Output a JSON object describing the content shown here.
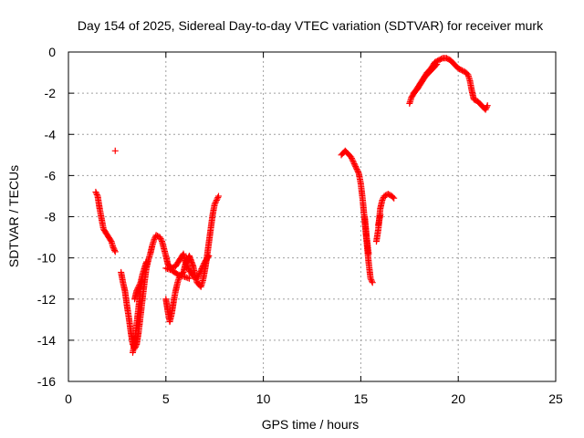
{
  "chart_data": {
    "type": "scatter",
    "title": "Day 154 of 2025, Sidereal Day-to-day VTEC variation (SDTVAR) for receiver murk",
    "xlabel": "GPS time / hours",
    "ylabel": "SDTVAR / TECUs",
    "xlim": [
      0,
      25
    ],
    "ylim": [
      -16,
      0
    ],
    "xticks": [
      "0",
      "5",
      "10",
      "15",
      "20",
      "25"
    ],
    "yticks": [
      "0",
      "-2",
      "-4",
      "-6",
      "-8",
      "-10",
      "-12",
      "-14",
      "-16"
    ],
    "grid": true,
    "marker": "+",
    "color": "#ff0000",
    "segments": [
      [
        [
          1.4,
          -6.8
        ],
        [
          1.5,
          -7.0
        ],
        [
          1.6,
          -7.6
        ],
        [
          1.7,
          -8.1
        ],
        [
          1.8,
          -8.6
        ],
        [
          2.0,
          -8.9
        ],
        [
          2.2,
          -9.2
        ],
        [
          2.3,
          -9.5
        ],
        [
          2.4,
          -9.7
        ]
      ],
      [
        [
          2.4,
          -4.8
        ]
      ],
      [
        [
          2.7,
          -10.7
        ],
        [
          2.8,
          -11.2
        ],
        [
          2.9,
          -11.6
        ],
        [
          3.0,
          -12.3
        ],
        [
          3.1,
          -12.9
        ],
        [
          3.2,
          -13.6
        ],
        [
          3.3,
          -14.2
        ],
        [
          3.4,
          -14.4
        ],
        [
          3.5,
          -14.2
        ],
        [
          3.6,
          -13.6
        ],
        [
          3.7,
          -12.8
        ],
        [
          3.8,
          -12.0
        ],
        [
          3.9,
          -11.2
        ],
        [
          4.0,
          -10.5
        ],
        [
          4.1,
          -10.1
        ],
        [
          4.2,
          -9.8
        ],
        [
          4.3,
          -9.4
        ],
        [
          4.4,
          -9.1
        ],
        [
          4.5,
          -8.9
        ],
        [
          4.7,
          -9.0
        ],
        [
          4.8,
          -9.2
        ],
        [
          5.0,
          -9.9
        ],
        [
          5.1,
          -10.3
        ],
        [
          5.3,
          -10.5
        ],
        [
          5.5,
          -10.4
        ],
        [
          5.7,
          -10.1
        ],
        [
          5.9,
          -9.8
        ],
        [
          6.0,
          -10.2
        ],
        [
          6.2,
          -10.6
        ],
        [
          6.4,
          -10.9
        ],
        [
          6.6,
          -11.0
        ],
        [
          6.8,
          -10.6
        ],
        [
          7.0,
          -10.2
        ],
        [
          7.2,
          -9.9
        ]
      ],
      [
        [
          3.3,
          -14.6
        ],
        [
          3.4,
          -14.1
        ],
        [
          3.5,
          -13.2
        ],
        [
          3.6,
          -12.4
        ],
        [
          3.7,
          -11.5
        ],
        [
          3.8,
          -11.0
        ]
      ],
      [
        [
          3.4,
          -12.0
        ],
        [
          3.5,
          -11.6
        ],
        [
          3.7,
          -11.2
        ],
        [
          3.8,
          -10.8
        ],
        [
          4.0,
          -10.2
        ]
      ],
      [
        [
          5.0,
          -12.0
        ],
        [
          5.1,
          -12.6
        ],
        [
          5.2,
          -13.1
        ],
        [
          5.3,
          -12.7
        ],
        [
          5.4,
          -12.1
        ],
        [
          5.5,
          -11.6
        ],
        [
          5.6,
          -11.2
        ],
        [
          5.7,
          -10.9
        ],
        [
          5.9,
          -10.7
        ],
        [
          6.0,
          -10.3
        ],
        [
          6.2,
          -9.9
        ],
        [
          6.4,
          -10.4
        ],
        [
          6.5,
          -10.9
        ],
        [
          6.6,
          -11.2
        ],
        [
          6.8,
          -11.4
        ],
        [
          6.9,
          -11.1
        ],
        [
          7.0,
          -10.6
        ],
        [
          7.1,
          -10.0
        ],
        [
          7.2,
          -9.3
        ],
        [
          7.3,
          -8.6
        ],
        [
          7.4,
          -7.9
        ],
        [
          7.5,
          -7.4
        ],
        [
          7.6,
          -7.2
        ],
        [
          7.7,
          -7.0
        ]
      ],
      [
        [
          5.0,
          -10.5
        ],
        [
          5.3,
          -10.6
        ],
        [
          5.6,
          -10.8
        ],
        [
          5.9,
          -10.9
        ],
        [
          6.2,
          -11.0
        ]
      ],
      [
        [
          14.0,
          -5.0
        ],
        [
          14.1,
          -4.9
        ],
        [
          14.2,
          -4.8
        ],
        [
          14.3,
          -4.9
        ],
        [
          14.5,
          -5.1
        ],
        [
          14.6,
          -5.3
        ],
        [
          14.8,
          -5.7
        ],
        [
          14.9,
          -5.9
        ],
        [
          15.0,
          -6.4
        ],
        [
          15.1,
          -7.2
        ],
        [
          15.2,
          -8.2
        ],
        [
          15.3,
          -9.2
        ],
        [
          15.4,
          -10.2
        ],
        [
          15.5,
          -11.0
        ],
        [
          15.6,
          -11.2
        ]
      ],
      [
        [
          15.2,
          -8.0
        ],
        [
          15.3,
          -9.0
        ],
        [
          15.4,
          -9.8
        ]
      ],
      [
        [
          15.8,
          -9.2
        ],
        [
          15.9,
          -8.6
        ],
        [
          16.0,
          -7.6
        ],
        [
          16.1,
          -7.2
        ],
        [
          16.2,
          -7.0
        ],
        [
          16.4,
          -6.9
        ],
        [
          16.6,
          -7.0
        ],
        [
          16.7,
          -7.1
        ]
      ],
      [
        [
          15.9,
          -8.4
        ],
        [
          16.0,
          -7.9
        ]
      ],
      [
        [
          17.5,
          -2.5
        ],
        [
          17.6,
          -2.2
        ],
        [
          17.8,
          -1.9
        ],
        [
          18.0,
          -1.6
        ],
        [
          18.2,
          -1.3
        ],
        [
          18.4,
          -1.0
        ],
        [
          18.6,
          -0.8
        ],
        [
          18.8,
          -0.5
        ],
        [
          19.0,
          -0.4
        ],
        [
          19.2,
          -0.3
        ],
        [
          19.4,
          -0.3
        ],
        [
          19.6,
          -0.4
        ],
        [
          19.8,
          -0.6
        ],
        [
          20.0,
          -0.8
        ],
        [
          20.2,
          -0.9
        ],
        [
          20.4,
          -1.0
        ],
        [
          20.5,
          -1.1
        ],
        [
          20.6,
          -1.4
        ],
        [
          20.7,
          -1.9
        ],
        [
          20.8,
          -2.3
        ],
        [
          21.0,
          -2.4
        ],
        [
          21.2,
          -2.6
        ],
        [
          21.4,
          -2.8
        ],
        [
          21.5,
          -2.6
        ]
      ],
      [
        [
          17.7,
          -2.0
        ],
        [
          17.9,
          -1.8
        ],
        [
          18.1,
          -1.5
        ],
        [
          18.3,
          -1.2
        ],
        [
          18.6,
          -0.9
        ],
        [
          18.9,
          -0.6
        ]
      ]
    ]
  }
}
